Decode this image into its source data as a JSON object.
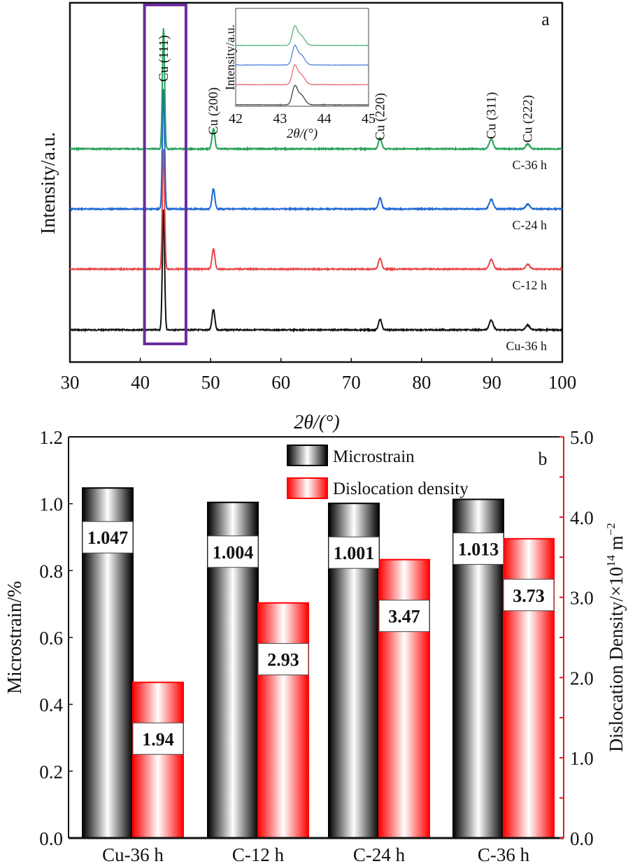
{
  "chart_data": [
    {
      "type": "line",
      "panel_label": "a",
      "title": "",
      "xlabel": "2θ/(°)",
      "ylabel": "Intensity/a.u.",
      "xlim": [
        30,
        100
      ],
      "xticks": [
        30,
        40,
        50,
        60,
        70,
        80,
        90,
        100
      ],
      "grid": false,
      "highlight_box": {
        "x_range": [
          40.6,
          46.5
        ],
        "color": "#6a2c9f"
      },
      "peaks": [
        {
          "label": "Cu (111)",
          "x": 43.3
        },
        {
          "label": "Cu (200)",
          "x": 50.4
        },
        {
          "label": "Cu (220)",
          "x": 74.1
        },
        {
          "label": "Cu (311)",
          "x": 89.9
        },
        {
          "label": "Cu (222)",
          "x": 95.1
        }
      ],
      "series": [
        {
          "name": "Cu-36 h",
          "color": "#111111",
          "offset": 0,
          "peak_heights": [
            1.0,
            0.17,
            0.09,
            0.08,
            0.04
          ]
        },
        {
          "name": "C-12 h",
          "color": "#e8464a",
          "offset": 1,
          "peak_heights": [
            1.0,
            0.17,
            0.09,
            0.08,
            0.04
          ]
        },
        {
          "name": "C-24 h",
          "color": "#1f66d1",
          "offset": 2,
          "peak_heights": [
            1.0,
            0.17,
            0.09,
            0.08,
            0.04
          ]
        },
        {
          "name": "C-36 h",
          "color": "#27a05a",
          "offset": 3,
          "peak_heights": [
            1.0,
            0.17,
            0.09,
            0.08,
            0.04
          ]
        }
      ],
      "inset": {
        "xlabel": "2θ/(°)",
        "ylabel": "Intensity/a.u.",
        "xlim": [
          42,
          45
        ],
        "xticks": [
          42,
          43,
          44,
          45
        ],
        "peak_x": 43.33
      }
    },
    {
      "type": "bar",
      "panel_label": "b",
      "categories": [
        "Cu-36 h",
        "C-12 h",
        "C-24 h",
        "C-36 h"
      ],
      "series": [
        {
          "name": "Microstrain",
          "axis": "left",
          "values": [
            1.047,
            1.004,
            1.001,
            1.013
          ],
          "labels": [
            "1.047",
            "1.004",
            "1.001",
            "1.013"
          ],
          "color": "#000000"
        },
        {
          "name": "Dislocation density",
          "axis": "right",
          "values": [
            1.94,
            2.93,
            3.47,
            3.73
          ],
          "labels": [
            "1.94",
            "2.93",
            "3.47",
            "3.73"
          ],
          "color": "#ff0000"
        }
      ],
      "ylabel": "Microstrain/%",
      "ylim": [
        0,
        1.2
      ],
      "yticks": [
        "0.0",
        "0.2",
        "0.4",
        "0.6",
        "0.8",
        "1.0",
        "1.2"
      ],
      "y2label": "Dislocation Density/×10",
      "y2label_sup": "14",
      "y2label_unit": " m",
      "y2label_unit_sup": "−2",
      "y2lim": [
        0,
        5
      ],
      "y2ticks": [
        "0.0",
        "1.0",
        "2.0",
        "3.0",
        "4.0",
        "5.0"
      ],
      "legend": "top-right",
      "grid": false
    }
  ]
}
